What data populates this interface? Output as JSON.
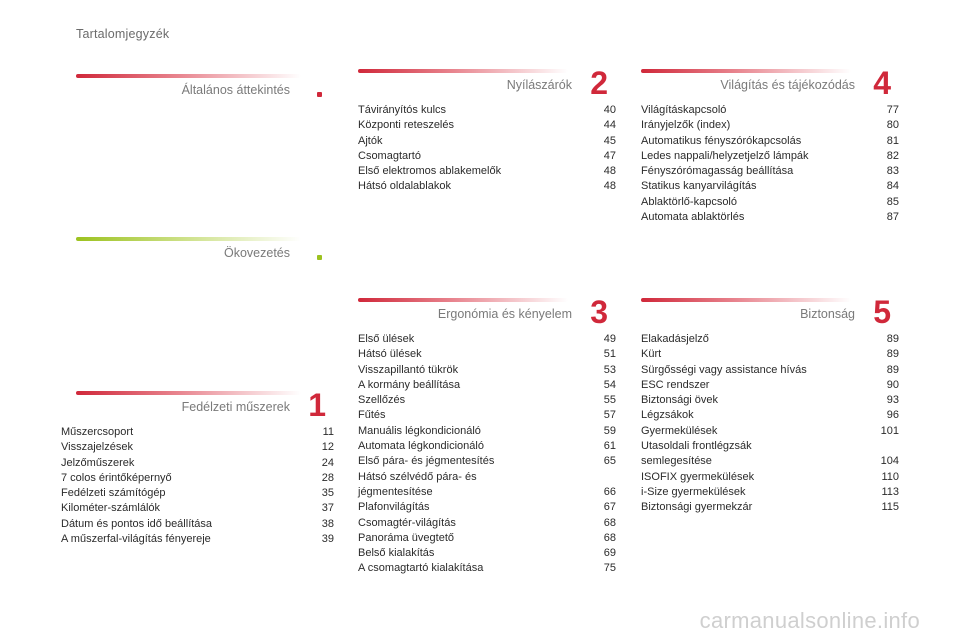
{
  "page_title": "Tartalomjegyzék",
  "watermark": "carmanualsonline.info",
  "sections": {
    "overview": {
      "title": "Általános áttekintés"
    },
    "eco": {
      "title": "Ökovezetés"
    },
    "instruments": {
      "title": "Fedélzeti műszerek",
      "number": "1",
      "items": [
        {
          "label": "Műszercsoport",
          "page": "11"
        },
        {
          "label": "Visszajelzések",
          "page": "12"
        },
        {
          "label": "Jelzőműszerek",
          "page": "24"
        },
        {
          "label": "7 colos érintőképernyő",
          "page": "28"
        },
        {
          "label": "Fedélzeti számítógép",
          "page": "35"
        },
        {
          "label": "Kilométer-számlálók",
          "page": "37"
        },
        {
          "label": "Dátum és pontos idő beállítása",
          "page": "38"
        },
        {
          "label": "A műszerfal-világítás fényereje",
          "page": "39"
        }
      ]
    },
    "openings": {
      "title": "Nyílászárók",
      "number": "2",
      "items": [
        {
          "label": "Távirányítós kulcs",
          "page": "40"
        },
        {
          "label": "Központi reteszelés",
          "page": "44"
        },
        {
          "label": "Ajtók",
          "page": "45"
        },
        {
          "label": "Csomagtartó",
          "page": "47"
        },
        {
          "label": "Első elektromos ablakemelők",
          "page": "48"
        },
        {
          "label": "Hátsó oldalablakok",
          "page": "48"
        }
      ]
    },
    "ergonomics": {
      "title": "Ergonómia és kényelem",
      "number": "3",
      "items": [
        {
          "label": "Első ülések",
          "page": "49"
        },
        {
          "label": "Hátsó ülések",
          "page": "51"
        },
        {
          "label": "Visszapillantó tükrök",
          "page": "53"
        },
        {
          "label": "A kormány beállítása",
          "page": "54"
        },
        {
          "label": "Szellőzés",
          "page": "55"
        },
        {
          "label": "Fűtés",
          "page": "57"
        },
        {
          "label": "Manuális légkondicionáló",
          "page": "59"
        },
        {
          "label": "Automata légkondicionáló",
          "page": "61"
        },
        {
          "label": "Első pára- és jégmentesítés",
          "page": "65"
        },
        {
          "label": "Hátsó szélvédő pára- és\n    jégmentesítése",
          "page": "66"
        },
        {
          "label": "Plafonvilágítás",
          "page": "67"
        },
        {
          "label": "Csomagtér-világítás",
          "page": "68"
        },
        {
          "label": "Panoráma üvegtető",
          "page": "68"
        },
        {
          "label": "Belső kialakítás",
          "page": "69"
        },
        {
          "label": "A csomagtartó kialakítása",
          "page": "75"
        }
      ]
    },
    "lighting": {
      "title": "Világítás és tájékozódás",
      "number": "4",
      "items": [
        {
          "label": "Világításkapcsoló",
          "page": "77"
        },
        {
          "label": "Irányjelzők (index)",
          "page": "80"
        },
        {
          "label": "Automatikus fényszórókapcsolás",
          "page": "81"
        },
        {
          "label": "Ledes nappali/helyzetjelző lámpák",
          "page": "82"
        },
        {
          "label": "Fényszórómagasság beállítása",
          "page": "83"
        },
        {
          "label": "Statikus kanyarvilágítás",
          "page": "84"
        },
        {
          "label": "Ablaktörlő-kapcsoló",
          "page": "85"
        },
        {
          "label": "Automata ablaktörlés",
          "page": "87"
        }
      ]
    },
    "safety": {
      "title": "Biztonság",
      "number": "5",
      "items": [
        {
          "label": "Elakadásjelző",
          "page": "89"
        },
        {
          "label": "Kürt",
          "page": "89"
        },
        {
          "label": "Sürgősségi vagy assistance hívás",
          "page": "89"
        },
        {
          "label": "ESC rendszer",
          "page": "90"
        },
        {
          "label": "Biztonsági övek",
          "page": "93"
        },
        {
          "label": "Légzsákok",
          "page": "96"
        },
        {
          "label": "Gyermekülések",
          "page": "101"
        },
        {
          "label": "Utasoldali frontlégzsák\n    semlegesítése",
          "page": "104"
        },
        {
          "label": "ISOFIX gyermekülések",
          "page": "110"
        },
        {
          "label": "i-Size gyermekülések",
          "page": "113"
        },
        {
          "label": "Biztonsági gyermekzár",
          "page": "115"
        }
      ]
    }
  }
}
